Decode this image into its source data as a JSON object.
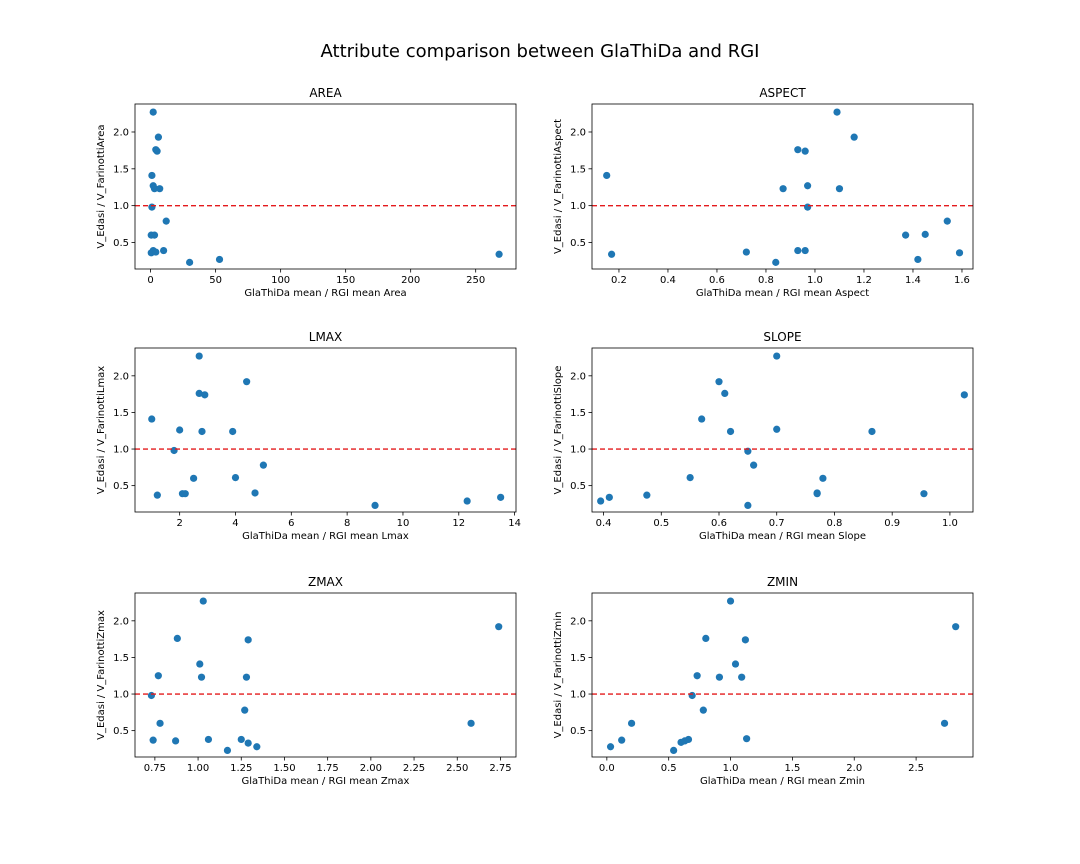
{
  "figure": {
    "title": "Attribute comparison between GlaThiDa and RGI"
  },
  "style": {
    "marker_color": "#1f77b4",
    "reference_line_color": "#e41a1c"
  },
  "chart_data": [
    {
      "type": "scatter",
      "title": "AREA",
      "xlabel": "GlaThiDa mean / RGI mean Area",
      "ylabel": "V_Edasi / V_FarinottiArea",
      "xlim": [
        -12,
        281
      ],
      "ylim": [
        0.14,
        2.38
      ],
      "xticks": [
        0,
        50,
        100,
        150,
        200,
        250
      ],
      "xtick_labels": [
        "0",
        "50",
        "100",
        "150",
        "200",
        "250"
      ],
      "yticks": [
        0.5,
        1.0,
        1.5,
        2.0
      ],
      "ytick_labels": [
        "0.5",
        "1.0",
        "1.5",
        "2.0"
      ],
      "reference_line_y": 1.0,
      "x": [
        2,
        6,
        4,
        5,
        1,
        2,
        3,
        7,
        1,
        12,
        0.5,
        3,
        0.5,
        2,
        4,
        10,
        30,
        53,
        268
      ],
      "y": [
        2.27,
        1.93,
        1.76,
        1.74,
        1.41,
        1.27,
        1.23,
        1.23,
        0.98,
        0.79,
        0.6,
        0.6,
        0.36,
        0.39,
        0.37,
        0.39,
        0.23,
        0.27,
        0.34
      ]
    },
    {
      "type": "scatter",
      "title": "ASPECT",
      "xlabel": "GlaThiDa mean / RGI mean Aspect",
      "ylabel": "V_Edasi / V_FarinottiAspect",
      "xlim": [
        0.09,
        1.645
      ],
      "ylim": [
        0.14,
        2.38
      ],
      "xticks": [
        0.2,
        0.4,
        0.6,
        0.8,
        1.0,
        1.2,
        1.4,
        1.6
      ],
      "xtick_labels": [
        "0.2",
        "0.4",
        "0.6",
        "0.8",
        "1.0",
        "1.2",
        "1.4",
        "1.6"
      ],
      "yticks": [
        0.5,
        1.0,
        1.5,
        2.0
      ],
      "ytick_labels": [
        "0.5",
        "1.0",
        "1.5",
        "2.0"
      ],
      "reference_line_y": 1.0,
      "x": [
        1.09,
        1.16,
        0.93,
        0.96,
        0.15,
        0.87,
        0.97,
        1.1,
        0.97,
        1.54,
        1.37,
        1.45,
        0.17,
        0.72,
        0.93,
        0.96,
        0.84,
        1.42,
        1.59
      ],
      "y": [
        2.27,
        1.93,
        1.76,
        1.74,
        1.41,
        1.23,
        1.27,
        1.23,
        0.98,
        0.79,
        0.6,
        0.61,
        0.34,
        0.37,
        0.39,
        0.39,
        0.23,
        0.27,
        0.36
      ]
    },
    {
      "type": "scatter",
      "title": "LMAX",
      "xlabel": "GlaThiDa mean / RGI mean Lmax",
      "ylabel": "V_Edasi / V_FarinottiLmax",
      "xlim": [
        0.4,
        14.05
      ],
      "ylim": [
        0.14,
        2.38
      ],
      "xticks": [
        2,
        4,
        6,
        8,
        10,
        12,
        14
      ],
      "xtick_labels": [
        "2",
        "4",
        "6",
        "8",
        "10",
        "12",
        "14"
      ],
      "yticks": [
        0.5,
        1.0,
        1.5,
        2.0
      ],
      "ytick_labels": [
        "0.5",
        "1.0",
        "1.5",
        "2.0"
      ],
      "reference_line_y": 1.0,
      "x": [
        2.7,
        4.4,
        2.7,
        2.9,
        1.0,
        2.0,
        2.8,
        3.9,
        1.8,
        5.0,
        2.5,
        4.0,
        1.2,
        2.1,
        2.2,
        4.7,
        9.0,
        12.3,
        13.5
      ],
      "y": [
        2.27,
        1.92,
        1.76,
        1.74,
        1.41,
        1.26,
        1.24,
        1.24,
        0.98,
        0.78,
        0.6,
        0.61,
        0.37,
        0.39,
        0.39,
        0.4,
        0.23,
        0.29,
        0.34
      ]
    },
    {
      "type": "scatter",
      "title": "SLOPE",
      "xlabel": "GlaThiDa mean / RGI mean Slope",
      "ylabel": "V_Edasi / V_FarinottiSlope",
      "xlim": [
        0.38,
        1.04
      ],
      "ylim": [
        0.14,
        2.38
      ],
      "xticks": [
        0.4,
        0.5,
        0.6,
        0.7,
        0.8,
        0.9,
        1.0
      ],
      "xtick_labels": [
        "0.4",
        "0.5",
        "0.6",
        "0.7",
        "0.8",
        "0.9",
        "1.0"
      ],
      "yticks": [
        0.5,
        1.0,
        1.5,
        2.0
      ],
      "ytick_labels": [
        "0.5",
        "1.0",
        "1.5",
        "2.0"
      ],
      "reference_line_y": 1.0,
      "x": [
        0.7,
        0.6,
        0.61,
        1.025,
        0.57,
        0.62,
        0.7,
        0.865,
        0.65,
        0.66,
        0.55,
        0.78,
        0.395,
        0.41,
        0.475,
        0.77,
        0.77,
        0.955,
        0.65
      ],
      "y": [
        2.27,
        1.92,
        1.76,
        1.74,
        1.41,
        1.24,
        1.27,
        1.24,
        0.97,
        0.78,
        0.61,
        0.6,
        0.29,
        0.34,
        0.37,
        0.39,
        0.4,
        0.39,
        0.23
      ]
    },
    {
      "type": "scatter",
      "title": "ZMAX",
      "xlabel": "GlaThiDa mean / RGI mean Zmax",
      "ylabel": "V_Edasi / V_FarinottiZmax",
      "xlim": [
        0.635,
        2.84
      ],
      "ylim": [
        0.14,
        2.38
      ],
      "xticks": [
        0.75,
        1.0,
        1.25,
        1.5,
        1.75,
        2.0,
        2.25,
        2.5,
        2.75
      ],
      "xtick_labels": [
        "0.75",
        "1.00",
        "1.25",
        "1.50",
        "1.75",
        "2.00",
        "2.25",
        "2.50",
        "2.75"
      ],
      "yticks": [
        0.5,
        1.0,
        1.5,
        2.0
      ],
      "ytick_labels": [
        "0.5",
        "1.0",
        "1.5",
        "2.0"
      ],
      "reference_line_y": 1.0,
      "x": [
        1.03,
        2.74,
        0.88,
        1.29,
        1.01,
        0.77,
        1.02,
        1.28,
        0.73,
        1.27,
        0.78,
        2.58,
        0.74,
        0.87,
        1.06,
        1.25,
        1.29,
        1.17,
        1.34
      ],
      "y": [
        2.27,
        1.92,
        1.76,
        1.74,
        1.41,
        1.25,
        1.23,
        1.23,
        0.98,
        0.78,
        0.6,
        0.6,
        0.37,
        0.36,
        0.38,
        0.38,
        0.33,
        0.23,
        0.28
      ]
    },
    {
      "type": "scatter",
      "title": "ZMIN",
      "xlabel": "GlaThiDa mean / RGI mean Zmin",
      "ylabel": "V_Edasi / V_FarinottiZmin",
      "xlim": [
        -0.12,
        2.96
      ],
      "ylim": [
        0.14,
        2.38
      ],
      "xticks": [
        0.0,
        0.5,
        1.0,
        1.5,
        2.0,
        2.5
      ],
      "xtick_labels": [
        "0.0",
        "0.5",
        "1.0",
        "1.5",
        "2.0",
        "2.5"
      ],
      "yticks": [
        0.5,
        1.0,
        1.5,
        2.0
      ],
      "ytick_labels": [
        "0.5",
        "1.0",
        "1.5",
        "2.0"
      ],
      "reference_line_y": 1.0,
      "x": [
        1.0,
        2.82,
        0.8,
        1.12,
        1.04,
        0.73,
        0.91,
        1.09,
        0.69,
        0.78,
        0.2,
        2.73,
        0.03,
        0.12,
        0.6,
        0.63,
        0.66,
        1.13,
        0.54
      ],
      "y": [
        2.27,
        1.92,
        1.76,
        1.74,
        1.41,
        1.25,
        1.23,
        1.23,
        0.98,
        0.78,
        0.6,
        0.6,
        0.28,
        0.37,
        0.34,
        0.36,
        0.38,
        0.39,
        0.23
      ]
    }
  ]
}
